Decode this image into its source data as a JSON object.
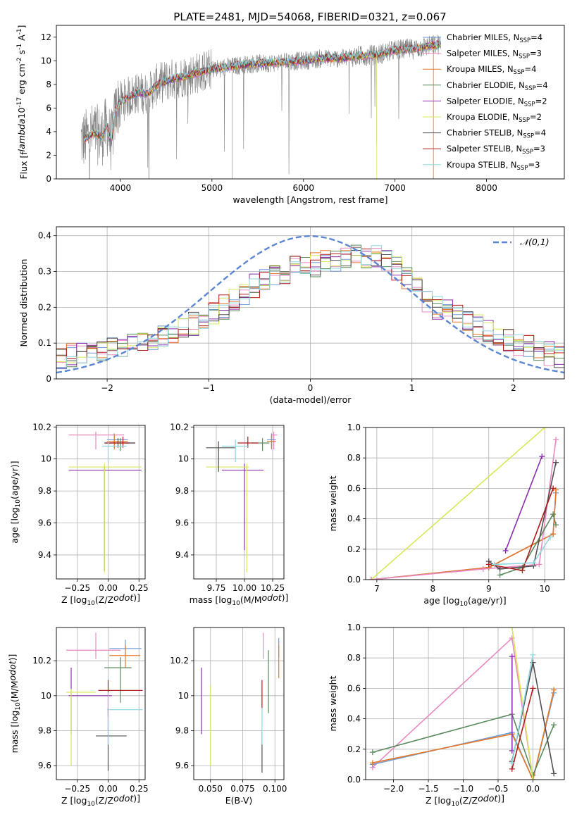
{
  "figure": {
    "title": "PLATE=2481, MJD=54068, FIBERID=0321, z=0.067"
  },
  "colors": {
    "chab_miles": "#6f9bd6",
    "salp_miles": "#e889c1",
    "krou_miles": "#e6782a",
    "chab_elodie": "#5a8a5e",
    "salp_elodie": "#8a2fad",
    "krou_elodie": "#d9e85a",
    "chab_stelib": "#505050",
    "salp_stelib": "#b01c1c",
    "krou_stelib": "#8ed6de",
    "data_gray": "#808080",
    "gauss": "#5b86d4"
  },
  "chart_data": [
    {
      "id": "spectrum",
      "type": "line",
      "title": "PLATE=2481, MJD=54068, FIBERID=0321, z=0.067",
      "xlabel": "wavelength [Angstrom, rest frame]",
      "ylabel": "Flux [f$_\\lambda$10$^{-17}$ erg cm$^{-2}$ s$^{-1}$ A$^{-1}$]",
      "xlim": [
        3300,
        8850
      ],
      "ylim": [
        0,
        13
      ],
      "xticks": [
        4000,
        5000,
        6000,
        7000,
        8000
      ],
      "yticks": [
        0,
        2,
        4,
        6,
        8,
        10,
        12
      ],
      "grid": false,
      "legend_placement": "right",
      "legend": [
        {
          "label": "Chabrier MILES, N",
          "sub": "SSP",
          "eq": "=4",
          "color_key": "chab_miles"
        },
        {
          "label": "Salpeter MILES, N",
          "sub": "SSP",
          "eq": "=3",
          "color_key": "salp_miles"
        },
        {
          "label": "Kroupa MILES, N",
          "sub": "SSP",
          "eq": "=4",
          "color_key": "krou_miles"
        },
        {
          "label": "Chabrier ELODIE, N",
          "sub": "SSP",
          "eq": "=4",
          "color_key": "chab_elodie"
        },
        {
          "label": "Salpeter ELODIE, N",
          "sub": "SSP",
          "eq": "=2",
          "color_key": "salp_elodie"
        },
        {
          "label": "Kroupa ELODIE, N",
          "sub": "SSP",
          "eq": "=2",
          "color_key": "krou_elodie"
        },
        {
          "label": "Chabrier STELIB, N",
          "sub": "SSP",
          "eq": "=4",
          "color_key": "chab_stelib"
        },
        {
          "label": "Salpeter STELIB, N",
          "sub": "SSP",
          "eq": "=3",
          "color_key": "salp_stelib"
        },
        {
          "label": "Kroupa STELIB, N",
          "sub": "SSP",
          "eq": "=3",
          "color_key": "krou_stelib"
        }
      ],
      "model_continuum": {
        "x": [
          3600,
          3700,
          3800,
          3850,
          3900,
          3950,
          4000,
          4100,
          4200,
          4300,
          4400,
          4500,
          4600,
          4800,
          5000,
          5200,
          5400,
          5600,
          5800,
          6000,
          6200,
          6400,
          6600,
          6800,
          7000,
          7200,
          7400,
          7500
        ],
        "y": [
          3.3,
          3.9,
          3.6,
          4.6,
          3.0,
          5.9,
          6.5,
          7.0,
          7.3,
          7.2,
          8.0,
          8.3,
          8.5,
          8.9,
          9.3,
          9.5,
          9.7,
          9.8,
          9.9,
          10.0,
          10.2,
          10.2,
          10.4,
          10.5,
          10.9,
          11.0,
          11.3,
          11.4
        ]
      },
      "data_range": {
        "xmin": 3570,
        "xmax": 7500,
        "noise": 1.0
      }
    },
    {
      "id": "residuals",
      "type": "step",
      "xlabel": "(data-model)/error",
      "ylabel": "Normed distribution",
      "xlim": [
        -2.5,
        2.5
      ],
      "ylim": [
        0,
        0.425
      ],
      "xticks": [
        -2,
        -1,
        0,
        1,
        2
      ],
      "yticks": [
        0.0,
        0.1,
        0.2,
        0.3,
        0.4
      ],
      "grid": true,
      "legend_placement": "top-right",
      "gauss_label": "𝒩(0,1)",
      "bins": 50,
      "base_profile": [
        0.06,
        0.065,
        0.07,
        0.075,
        0.08,
        0.085,
        0.09,
        0.095,
        0.1,
        0.105,
        0.115,
        0.125,
        0.14,
        0.155,
        0.17,
        0.185,
        0.2,
        0.22,
        0.24,
        0.26,
        0.28,
        0.29,
        0.3,
        0.31,
        0.315,
        0.32,
        0.325,
        0.33,
        0.335,
        0.34,
        0.34,
        0.34,
        0.33,
        0.31,
        0.28,
        0.25,
        0.22,
        0.2,
        0.19,
        0.18,
        0.16,
        0.145,
        0.13,
        0.115,
        0.105,
        0.1,
        0.09,
        0.08,
        0.07,
        0.06
      ]
    },
    {
      "id": "z_age",
      "type": "scatter",
      "xlabel": "Z [log$_{10}$(Z/Z$_\\odot$)]",
      "ylabel": "age  [log$_{10}$(age/yr)]",
      "xlim": [
        -0.42,
        0.3
      ],
      "ylim": [
        9.25,
        10.21
      ],
      "xticks": [
        -0.25,
        0.0,
        0.25
      ],
      "xtick_labels": [
        "−0.25",
        "0.00",
        "0.25"
      ],
      "yticks": [
        9.4,
        9.6,
        9.8,
        10.0,
        10.2
      ],
      "grid": true,
      "errorbars": [
        {
          "k": "salp_miles",
          "x": -0.1,
          "xerr": [
            0.22,
            0.23
          ],
          "y": 10.15,
          "yerr": [
            0.09,
            0.02
          ]
        },
        {
          "k": "chab_miles",
          "x": 0.05,
          "xerr": [
            0.06,
            0.11
          ],
          "y": 10.12,
          "yerr": [
            0.05,
            0.04
          ]
        },
        {
          "k": "krou_miles",
          "x": 0.05,
          "xerr": [
            0.06,
            0.11
          ],
          "y": 10.11,
          "yerr": [
            0.05,
            0.04
          ]
        },
        {
          "k": "chab_elodie",
          "x": 0.1,
          "xerr": [
            0.13,
            0.12
          ],
          "y": 10.1,
          "yerr": [
            0.05,
            0.03
          ]
        },
        {
          "k": "salp_elodie",
          "x": -0.03,
          "xerr": [
            0.29,
            0.3
          ],
          "y": 9.93,
          "yerr": [
            0.63,
            0.02
          ]
        },
        {
          "k": "krou_elodie",
          "x": -0.03,
          "xerr": [
            0.29,
            0.3
          ],
          "y": 9.95,
          "yerr": [
            0.66,
            0.02
          ]
        },
        {
          "k": "chab_stelib",
          "x": 0.08,
          "xerr": [
            0.11,
            0.14
          ],
          "y": 10.1,
          "yerr": [
            0.03,
            0.03
          ]
        },
        {
          "k": "salp_stelib",
          "x": 0.12,
          "xerr": [
            0.14,
            0.05
          ],
          "y": 10.1,
          "yerr": [
            0.03,
            0.04
          ]
        },
        {
          "k": "krou_stelib",
          "x": 0.0,
          "xerr": [
            0.05,
            0.15
          ],
          "y": 10.08,
          "yerr": [
            0.1,
            0.04
          ]
        }
      ]
    },
    {
      "id": "mass_age",
      "type": "scatter",
      "xlabel": "mass [log$_{10}$(M/M$_\\odot$)]",
      "ylabel": "",
      "xlim": [
        9.55,
        10.35
      ],
      "ylim": [
        9.25,
        10.21
      ],
      "xticks": [
        9.75,
        10.0,
        10.25
      ],
      "xtick_labels": [
        "9.75",
        "10.00",
        "10.25"
      ],
      "yticks": [
        9.4,
        9.6,
        9.8,
        10.0,
        10.2
      ],
      "grid": true,
      "errorbars": [
        {
          "k": "salp_miles",
          "x": 10.26,
          "xerr": [
            0.02,
            0.03
          ],
          "y": 10.15,
          "yerr": [
            0.09,
            0.02
          ]
        },
        {
          "k": "chab_miles",
          "x": 10.24,
          "xerr": [
            0.04,
            0.04
          ],
          "y": 10.12,
          "yerr": [
            0.05,
            0.04
          ]
        },
        {
          "k": "krou_miles",
          "x": 10.24,
          "xerr": [
            0.04,
            0.04
          ],
          "y": 10.11,
          "yerr": [
            0.05,
            0.04
          ]
        },
        {
          "k": "chab_elodie",
          "x": 10.16,
          "xerr": [
            0.1,
            0.06
          ],
          "y": 10.1,
          "yerr": [
            0.05,
            0.03
          ]
        },
        {
          "k": "salp_elodie",
          "x": 10.0,
          "xerr": [
            0.2,
            0.17
          ],
          "y": 9.93,
          "yerr": [
            0.5,
            0.04
          ]
        },
        {
          "k": "krou_elodie",
          "x": 10.02,
          "xerr": [
            0.36,
            0.02
          ],
          "y": 9.95,
          "yerr": [
            0.66,
            0.02
          ]
        },
        {
          "k": "chab_stelib",
          "x": 9.77,
          "xerr": [
            0.11,
            0.15
          ],
          "y": 10.07,
          "yerr": [
            0.15,
            0.04
          ]
        },
        {
          "k": "salp_stelib",
          "x": 10.03,
          "xerr": [
            0.09,
            0.09
          ],
          "y": 10.1,
          "yerr": [
            0.03,
            0.04
          ]
        },
        {
          "k": "krou_stelib",
          "x": 9.92,
          "xerr": [
            0.12,
            0.12
          ],
          "y": 10.08,
          "yerr": [
            0.1,
            0.04
          ]
        }
      ]
    },
    {
      "id": "age_weight",
      "type": "line",
      "xlabel": "age  [log$_{10}$(age/yr)]",
      "ylabel": "mass weight",
      "xlim": [
        6.8,
        10.35
      ],
      "ylim": [
        0,
        1.0
      ],
      "xticks": [
        7,
        8,
        9,
        10
      ],
      "yticks": [
        0.0,
        0.2,
        0.4,
        0.6,
        0.8,
        1.0
      ],
      "yticks_fmt": 1,
      "grid": true,
      "series": [
        {
          "k": "krou_elodie",
          "x": [
            6.9,
            10.0
          ],
          "y": [
            0.0,
            1.0
          ]
        },
        {
          "k": "chab_miles",
          "x": [
            6.9,
            9.0,
            10.15,
            10.2
          ],
          "y": [
            0.0,
            0.08,
            0.3,
            0.57
          ]
        },
        {
          "k": "krou_miles",
          "x": [
            6.9,
            9.0,
            10.15,
            10.2
          ],
          "y": [
            0.0,
            0.08,
            0.3,
            0.59
          ]
        },
        {
          "k": "salp_miles",
          "x": [
            6.9,
            8.9,
            9.9,
            10.2
          ],
          "y": [
            0.0,
            0.07,
            0.1,
            0.92
          ]
        },
        {
          "k": "chab_elodie",
          "x": [
            9.2,
            9.6,
            10.15,
            10.2
          ],
          "y": [
            0.03,
            0.08,
            0.43,
            0.36
          ]
        },
        {
          "k": "salp_elodie",
          "x": [
            9.3,
            9.95
          ],
          "y": [
            0.19,
            0.81
          ]
        },
        {
          "k": "chab_stelib",
          "x": [
            9.0,
            9.2,
            9.8,
            10.2
          ],
          "y": [
            0.12,
            0.07,
            0.09,
            0.77
          ]
        },
        {
          "k": "salp_stelib",
          "x": [
            9.0,
            9.6,
            10.15
          ],
          "y": [
            0.1,
            0.06,
            0.6
          ]
        },
        {
          "k": "krou_stelib",
          "x": [
            9.1,
            9.8,
            10.1
          ],
          "y": [
            0.1,
            0.11,
            0.28
          ]
        }
      ]
    },
    {
      "id": "z_mass",
      "type": "scatter",
      "xlabel": "Z [log$_{10}$(Z/Z$_\\odot$)]",
      "ylabel": "mass [log$_{10}$(M/M$_\\odot$)]",
      "xlim": [
        -0.42,
        0.3
      ],
      "ylim": [
        9.52,
        10.39
      ],
      "xticks": [
        -0.25,
        0.0,
        0.25
      ],
      "xtick_labels": [
        "−0.25",
        "0.00",
        "0.25"
      ],
      "yticks": [
        9.6,
        9.8,
        10.0,
        10.2
      ],
      "grid": true,
      "errorbars": [
        {
          "k": "salp_miles",
          "x": -0.1,
          "xerr": [
            0.24,
            0.2
          ],
          "y": 10.26,
          "yerr": [
            0.05,
            0.1
          ]
        },
        {
          "k": "chab_miles",
          "x": 0.14,
          "xerr": [
            0.13,
            0.13
          ],
          "y": 10.27,
          "yerr": [
            0.04,
            0.05
          ]
        },
        {
          "k": "krou_miles",
          "x": 0.14,
          "xerr": [
            0.13,
            0.12
          ],
          "y": 10.23,
          "yerr": [
            0.07,
            0.06
          ]
        },
        {
          "k": "chab_elodie",
          "x": 0.1,
          "xerr": [
            0.13,
            0.09
          ],
          "y": 10.16,
          "yerr": [
            0.2,
            0.06
          ]
        },
        {
          "k": "salp_elodie",
          "x": -0.3,
          "xerr": [
            0.02,
            0.33
          ],
          "y": 10.0,
          "yerr": [
            0.22,
            0.16
          ]
        },
        {
          "k": "krou_elodie",
          "x": -0.3,
          "xerr": [
            0.04,
            0.2
          ],
          "y": 10.02,
          "yerr": [
            0.42,
            0.02
          ]
        },
        {
          "k": "chab_stelib",
          "x": 0.0,
          "xerr": [
            0.1,
            0.15
          ],
          "y": 9.77,
          "yerr": [
            0.2,
            0.16
          ]
        },
        {
          "k": "salp_stelib",
          "x": 0.0,
          "xerr": [
            0.08,
            0.28
          ],
          "y": 10.03,
          "yerr": [
            0.15,
            0.06
          ]
        },
        {
          "k": "krou_stelib",
          "x": 0.0,
          "xerr": [
            0.01,
            0.28
          ],
          "y": 9.92,
          "yerr": [
            0.2,
            0.1
          ]
        }
      ]
    },
    {
      "id": "ebv_mass",
      "type": "scatter",
      "xlabel": "E(B-V)",
      "ylabel": "",
      "xlim": [
        0.037,
        0.107
      ],
      "ylim": [
        9.52,
        10.39
      ],
      "xticks": [
        0.05,
        0.075,
        0.1
      ],
      "xtick_labels": [
        "0.050",
        "0.075",
        "0.100"
      ],
      "yticks": [
        9.6,
        9.8,
        10.0,
        10.2
      ],
      "grid": true,
      "errorbars": [
        {
          "k": "salp_elodie",
          "x": 0.043,
          "xerr": [
            0.0,
            0.0
          ],
          "y": 10.0,
          "yerr": [
            0.22,
            0.16
          ]
        },
        {
          "k": "krou_elodie",
          "x": 0.05,
          "xerr": [
            0.0,
            0.0
          ],
          "y": 9.99,
          "yerr": [
            0.39,
            0.07
          ]
        },
        {
          "k": "chab_stelib",
          "x": 0.09,
          "xerr": [
            0.0,
            0.0
          ],
          "y": 9.72,
          "yerr": [
            0.16,
            0.08
          ]
        },
        {
          "k": "krou_stelib",
          "x": 0.09,
          "xerr": [
            0.0,
            0.0
          ],
          "y": 9.92,
          "yerr": [
            0.2,
            0.1
          ]
        },
        {
          "k": "salp_stelib",
          "x": 0.09,
          "xerr": [
            0.0,
            0.0
          ],
          "y": 10.03,
          "yerr": [
            0.1,
            0.06
          ]
        },
        {
          "k": "salp_miles",
          "x": 0.091,
          "xerr": [
            0.0,
            0.0
          ],
          "y": 10.26,
          "yerr": [
            0.05,
            0.1
          ]
        },
        {
          "k": "chab_elodie",
          "x": 0.095,
          "xerr": [
            0.0,
            0.0
          ],
          "y": 10.1,
          "yerr": [
            0.2,
            0.16
          ]
        },
        {
          "k": "chab_miles",
          "x": 0.103,
          "xerr": [
            0.0,
            0.0
          ],
          "y": 10.27,
          "yerr": [
            0.05,
            0.06
          ]
        },
        {
          "k": "krou_miles",
          "x": 0.103,
          "xerr": [
            0.0,
            0.0
          ],
          "y": 10.23,
          "yerr": [
            0.13,
            0.06
          ]
        }
      ]
    },
    {
      "id": "z_weight",
      "type": "line",
      "xlabel": "Z [log$_{10}$(Z/Z$_\\odot$)]",
      "ylabel": "mass weight",
      "xlim": [
        -2.4,
        0.45
      ],
      "ylim": [
        0,
        1.0
      ],
      "xticks": [
        -2.0,
        -1.5,
        -1.0,
        -0.5,
        0.0
      ],
      "xtick_labels": [
        "−2.0",
        "−1.5",
        "−1.0",
        "−0.5",
        "0.0"
      ],
      "yticks": [
        0.0,
        0.2,
        0.4,
        0.6,
        0.8,
        1.0
      ],
      "yticks_fmt": 1,
      "grid": true,
      "series": [
        {
          "k": "salp_miles",
          "x": [
            -2.3,
            -0.3,
            0.0
          ],
          "y": [
            0.08,
            0.93,
            0.0
          ]
        },
        {
          "k": "chab_miles",
          "x": [
            -2.3,
            -0.3,
            0.0,
            0.3
          ],
          "y": [
            0.1,
            0.31,
            0.0,
            0.57
          ]
        },
        {
          "k": "krou_miles",
          "x": [
            -2.3,
            -0.3,
            0.0,
            0.3
          ],
          "y": [
            0.11,
            0.3,
            0.0,
            0.59
          ]
        },
        {
          "k": "chab_elodie",
          "x": [
            -2.3,
            -0.3,
            0.0,
            0.3
          ],
          "y": [
            0.18,
            0.43,
            0.03,
            0.36
          ]
        },
        {
          "k": "salp_elodie",
          "x": [
            -0.3,
            -0.3
          ],
          "y": [
            0.81,
            0.19
          ]
        },
        {
          "k": "krou_elodie",
          "x": [
            -0.3,
            0.0
          ],
          "y": [
            1.0,
            0.0
          ]
        },
        {
          "k": "chab_stelib",
          "x": [
            -0.3,
            0.0,
            0.3
          ],
          "y": [
            0.12,
            0.77,
            0.04
          ]
        },
        {
          "k": "salp_stelib",
          "x": [
            -0.3,
            0.0
          ],
          "y": [
            0.07,
            0.6
          ]
        },
        {
          "k": "krou_stelib",
          "x": [
            -0.3,
            0.0
          ],
          "y": [
            0.11,
            0.82
          ]
        }
      ]
    }
  ]
}
